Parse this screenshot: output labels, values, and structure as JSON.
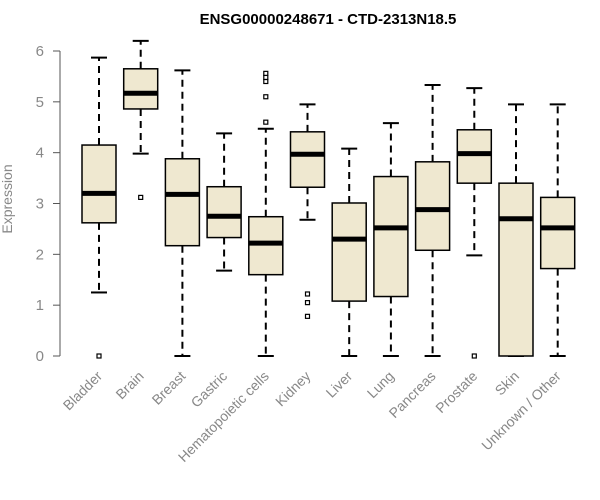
{
  "chart_data": {
    "type": "boxplot",
    "title": "ENSG00000248671 - CTD-2313N18.5",
    "xlabel": "",
    "ylabel": "Expression",
    "ylim": [
      0,
      6.2
    ],
    "yticks": [
      0,
      1,
      2,
      3,
      4,
      5,
      6
    ],
    "ytick_labels": [
      "0",
      "1",
      "2",
      "3",
      "4",
      "5",
      "6"
    ],
    "box_fill": "#efe8d0",
    "categories": [
      "Bladder",
      "Brain",
      "Breast",
      "Gastric",
      "Hematopoietic cells",
      "Kidney",
      "Liver",
      "Lung",
      "Pancreas",
      "Prostate",
      "Skin",
      "Unknown / Other"
    ],
    "boxes": [
      {
        "name": "Bladder",
        "whisker_low": 1.25,
        "q1": 2.62,
        "median": 3.2,
        "q3": 4.15,
        "whisker_high": 5.87,
        "outliers": [
          0
        ]
      },
      {
        "name": "Brain",
        "whisker_low": 3.98,
        "q1": 4.86,
        "median": 5.17,
        "q3": 5.65,
        "whisker_high": 6.2,
        "outliers": [
          3.12
        ]
      },
      {
        "name": "Breast",
        "whisker_low": 0,
        "q1": 2.17,
        "median": 3.18,
        "q3": 3.88,
        "whisker_high": 5.62,
        "outliers": []
      },
      {
        "name": "Gastric",
        "whisker_low": 1.68,
        "q1": 2.33,
        "median": 2.75,
        "q3": 3.33,
        "whisker_high": 4.38,
        "outliers": []
      },
      {
        "name": "Hematopoietic cells",
        "whisker_low": 0,
        "q1": 1.6,
        "median": 2.22,
        "q3": 2.74,
        "whisker_high": 4.47,
        "outliers": [
          4.6,
          5.1,
          5.4,
          5.48,
          5.56
        ]
      },
      {
        "name": "Kidney",
        "whisker_low": 2.68,
        "q1": 3.32,
        "median": 3.97,
        "q3": 4.41,
        "whisker_high": 4.95,
        "outliers": [
          0.78,
          1.05,
          1.22
        ]
      },
      {
        "name": "Liver",
        "whisker_low": 0,
        "q1": 1.08,
        "median": 2.3,
        "q3": 3.01,
        "whisker_high": 4.08,
        "outliers": []
      },
      {
        "name": "Lung",
        "whisker_low": 0,
        "q1": 1.17,
        "median": 2.52,
        "q3": 3.53,
        "whisker_high": 4.58,
        "outliers": []
      },
      {
        "name": "Pancreas",
        "whisker_low": 0,
        "q1": 2.08,
        "median": 2.88,
        "q3": 3.82,
        "whisker_high": 5.33,
        "outliers": []
      },
      {
        "name": "Prostate",
        "whisker_low": 1.98,
        "q1": 3.4,
        "median": 3.98,
        "q3": 4.45,
        "whisker_high": 5.27,
        "outliers": [
          0
        ]
      },
      {
        "name": "Skin",
        "whisker_low": 0,
        "q1": 0,
        "median": 2.7,
        "q3": 3.4,
        "whisker_high": 4.95,
        "outliers": []
      },
      {
        "name": "Unknown / Other",
        "whisker_low": 0,
        "q1": 1.72,
        "median": 2.52,
        "q3": 3.12,
        "whisker_high": 4.95,
        "outliers": []
      }
    ]
  }
}
